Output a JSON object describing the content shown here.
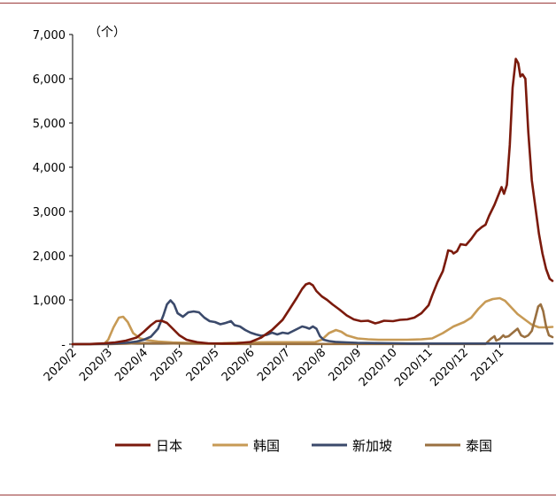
{
  "chart_data": {
    "type": "line",
    "unit_label": "（个）",
    "x_tick_labels": [
      "2020/2",
      "2020/3",
      "2020/4",
      "2020/5",
      "2020/5",
      "2020/6",
      "2020/7",
      "2020/8",
      "2020/9",
      "2020/10",
      "2020/11",
      "2020/12",
      "2021/1"
    ],
    "y_tick_labels": [
      "-",
      "1,000",
      "2,000",
      "3,000",
      "4,000",
      "5,000",
      "6,000",
      "7,000"
    ],
    "ylim": [
      0,
      7000
    ],
    "grid": false,
    "legend_position": "bottom",
    "series": [
      {
        "name": "日本",
        "color": "#7b1a0c",
        "points": [
          [
            0,
            0
          ],
          [
            0.5,
            5
          ],
          [
            0.9,
            20
          ],
          [
            1.2,
            40
          ],
          [
            1.5,
            80
          ],
          [
            1.8,
            150
          ],
          [
            2,
            280
          ],
          [
            2.2,
            430
          ],
          [
            2.35,
            520
          ],
          [
            2.5,
            530
          ],
          [
            2.65,
            480
          ],
          [
            2.8,
            360
          ],
          [
            3,
            200
          ],
          [
            3.2,
            100
          ],
          [
            3.5,
            45
          ],
          [
            3.8,
            20
          ],
          [
            4.2,
            15
          ],
          [
            4.6,
            20
          ],
          [
            5,
            50
          ],
          [
            5.3,
            150
          ],
          [
            5.6,
            320
          ],
          [
            5.9,
            550
          ],
          [
            6.1,
            800
          ],
          [
            6.3,
            1050
          ],
          [
            6.45,
            1250
          ],
          [
            6.55,
            1350
          ],
          [
            6.65,
            1380
          ],
          [
            6.75,
            1330
          ],
          [
            6.85,
            1200
          ],
          [
            7,
            1080
          ],
          [
            7.15,
            1000
          ],
          [
            7.3,
            900
          ],
          [
            7.5,
            780
          ],
          [
            7.7,
            650
          ],
          [
            7.9,
            560
          ],
          [
            8.1,
            520
          ],
          [
            8.3,
            530
          ],
          [
            8.5,
            470
          ],
          [
            8.6,
            490
          ],
          [
            8.75,
            530
          ],
          [
            9,
            520
          ],
          [
            9.2,
            550
          ],
          [
            9.4,
            560
          ],
          [
            9.6,
            600
          ],
          [
            9.8,
            700
          ],
          [
            10,
            880
          ],
          [
            10.1,
            1100
          ],
          [
            10.25,
            1400
          ],
          [
            10.4,
            1650
          ],
          [
            10.5,
            1950
          ],
          [
            10.55,
            2120
          ],
          [
            10.65,
            2100
          ],
          [
            10.7,
            2050
          ],
          [
            10.8,
            2100
          ],
          [
            10.9,
            2260
          ],
          [
            11.05,
            2240
          ],
          [
            11.2,
            2380
          ],
          [
            11.35,
            2550
          ],
          [
            11.5,
            2650
          ],
          [
            11.6,
            2700
          ],
          [
            11.7,
            2900
          ],
          [
            11.85,
            3150
          ],
          [
            11.95,
            3350
          ],
          [
            12.05,
            3550
          ],
          [
            12.12,
            3400
          ],
          [
            12.2,
            3600
          ],
          [
            12.28,
            4500
          ],
          [
            12.36,
            5800
          ],
          [
            12.45,
            6450
          ],
          [
            12.52,
            6350
          ],
          [
            12.58,
            6050
          ],
          [
            12.64,
            6100
          ],
          [
            12.72,
            6000
          ],
          [
            12.8,
            4800
          ],
          [
            12.9,
            3700
          ],
          [
            13.0,
            3100
          ],
          [
            13.1,
            2500
          ],
          [
            13.2,
            2050
          ],
          [
            13.3,
            1700
          ],
          [
            13.4,
            1480
          ],
          [
            13.48,
            1430
          ]
        ]
      },
      {
        "name": "韩国",
        "color": "#c79a55",
        "points": [
          [
            0,
            0
          ],
          [
            0.5,
            2
          ],
          [
            0.9,
            20
          ],
          [
            1.0,
            100
          ],
          [
            1.15,
            380
          ],
          [
            1.3,
            600
          ],
          [
            1.42,
            620
          ],
          [
            1.55,
            500
          ],
          [
            1.7,
            250
          ],
          [
            1.9,
            130
          ],
          [
            2.1,
            90
          ],
          [
            2.4,
            60
          ],
          [
            2.8,
            40
          ],
          [
            3.2,
            30
          ],
          [
            3.6,
            20
          ],
          [
            4,
            15
          ],
          [
            4.5,
            30
          ],
          [
            5,
            40
          ],
          [
            5.5,
            45
          ],
          [
            6,
            45
          ],
          [
            6.5,
            45
          ],
          [
            6.8,
            45
          ],
          [
            7,
            100
          ],
          [
            7.2,
            250
          ],
          [
            7.4,
            320
          ],
          [
            7.55,
            280
          ],
          [
            7.7,
            200
          ],
          [
            8,
            130
          ],
          [
            8.3,
            110
          ],
          [
            8.6,
            100
          ],
          [
            9,
            100
          ],
          [
            9.4,
            100
          ],
          [
            9.8,
            110
          ],
          [
            10.1,
            130
          ],
          [
            10.4,
            250
          ],
          [
            10.7,
            400
          ],
          [
            11,
            500
          ],
          [
            11.2,
            600
          ],
          [
            11.4,
            800
          ],
          [
            11.6,
            960
          ],
          [
            11.8,
            1020
          ],
          [
            12,
            1040
          ],
          [
            12.15,
            980
          ],
          [
            12.3,
            850
          ],
          [
            12.5,
            680
          ],
          [
            12.7,
            560
          ],
          [
            12.9,
            440
          ],
          [
            13.1,
            380
          ],
          [
            13.3,
            380
          ],
          [
            13.48,
            390
          ]
        ]
      },
      {
        "name": "新加坡",
        "color": "#3b4a6b",
        "points": [
          [
            0,
            0
          ],
          [
            0.5,
            3
          ],
          [
            1,
            10
          ],
          [
            1.5,
            30
          ],
          [
            1.8,
            60
          ],
          [
            2,
            100
          ],
          [
            2.2,
            170
          ],
          [
            2.4,
            350
          ],
          [
            2.55,
            650
          ],
          [
            2.65,
            900
          ],
          [
            2.75,
            990
          ],
          [
            2.85,
            900
          ],
          [
            2.95,
            700
          ],
          [
            3.1,
            620
          ],
          [
            3.25,
            720
          ],
          [
            3.4,
            740
          ],
          [
            3.55,
            720
          ],
          [
            3.7,
            600
          ],
          [
            3.85,
            520
          ],
          [
            4,
            500
          ],
          [
            4.15,
            450
          ],
          [
            4.3,
            480
          ],
          [
            4.45,
            520
          ],
          [
            4.55,
            430
          ],
          [
            4.7,
            400
          ],
          [
            4.85,
            320
          ],
          [
            5,
            260
          ],
          [
            5.15,
            220
          ],
          [
            5.3,
            190
          ],
          [
            5.45,
            210
          ],
          [
            5.6,
            260
          ],
          [
            5.75,
            220
          ],
          [
            5.9,
            260
          ],
          [
            6.05,
            240
          ],
          [
            6.2,
            300
          ],
          [
            6.35,
            360
          ],
          [
            6.45,
            400
          ],
          [
            6.55,
            380
          ],
          [
            6.65,
            350
          ],
          [
            6.75,
            400
          ],
          [
            6.85,
            350
          ],
          [
            6.95,
            180
          ],
          [
            7.05,
            100
          ],
          [
            7.2,
            70
          ],
          [
            7.4,
            50
          ],
          [
            7.7,
            40
          ],
          [
            8,
            30
          ],
          [
            8.5,
            25
          ],
          [
            9,
            20
          ],
          [
            9.5,
            15
          ],
          [
            10,
            15
          ],
          [
            10.5,
            15
          ],
          [
            11,
            15
          ],
          [
            11.5,
            15
          ],
          [
            12,
            15
          ],
          [
            12.5,
            15
          ],
          [
            13,
            15
          ],
          [
            13.48,
            15
          ]
        ]
      },
      {
        "name": "泰国",
        "color": "#9a7040",
        "points": [
          [
            0,
            0
          ],
          [
            0.5,
            0
          ],
          [
            1,
            0
          ],
          [
            1.5,
            10
          ],
          [
            1.8,
            20
          ],
          [
            2,
            25
          ],
          [
            2.5,
            20
          ],
          [
            3,
            15
          ],
          [
            3.5,
            10
          ],
          [
            4,
            8
          ],
          [
            5,
            5
          ],
          [
            6,
            5
          ],
          [
            7,
            5
          ],
          [
            8,
            5
          ],
          [
            9,
            5
          ],
          [
            10,
            5
          ],
          [
            11,
            5
          ],
          [
            11.6,
            5
          ],
          [
            11.75,
            120
          ],
          [
            11.85,
            180
          ],
          [
            11.9,
            80
          ],
          [
            12,
            120
          ],
          [
            12.1,
            200
          ],
          [
            12.15,
            160
          ],
          [
            12.25,
            180
          ],
          [
            12.35,
            250
          ],
          [
            12.5,
            350
          ],
          [
            12.6,
            200
          ],
          [
            12.7,
            160
          ],
          [
            12.8,
            200
          ],
          [
            12.9,
            300
          ],
          [
            13.0,
            600
          ],
          [
            13.08,
            850
          ],
          [
            13.15,
            900
          ],
          [
            13.22,
            750
          ],
          [
            13.3,
            400
          ],
          [
            13.38,
            200
          ],
          [
            13.48,
            160
          ]
        ]
      }
    ]
  }
}
